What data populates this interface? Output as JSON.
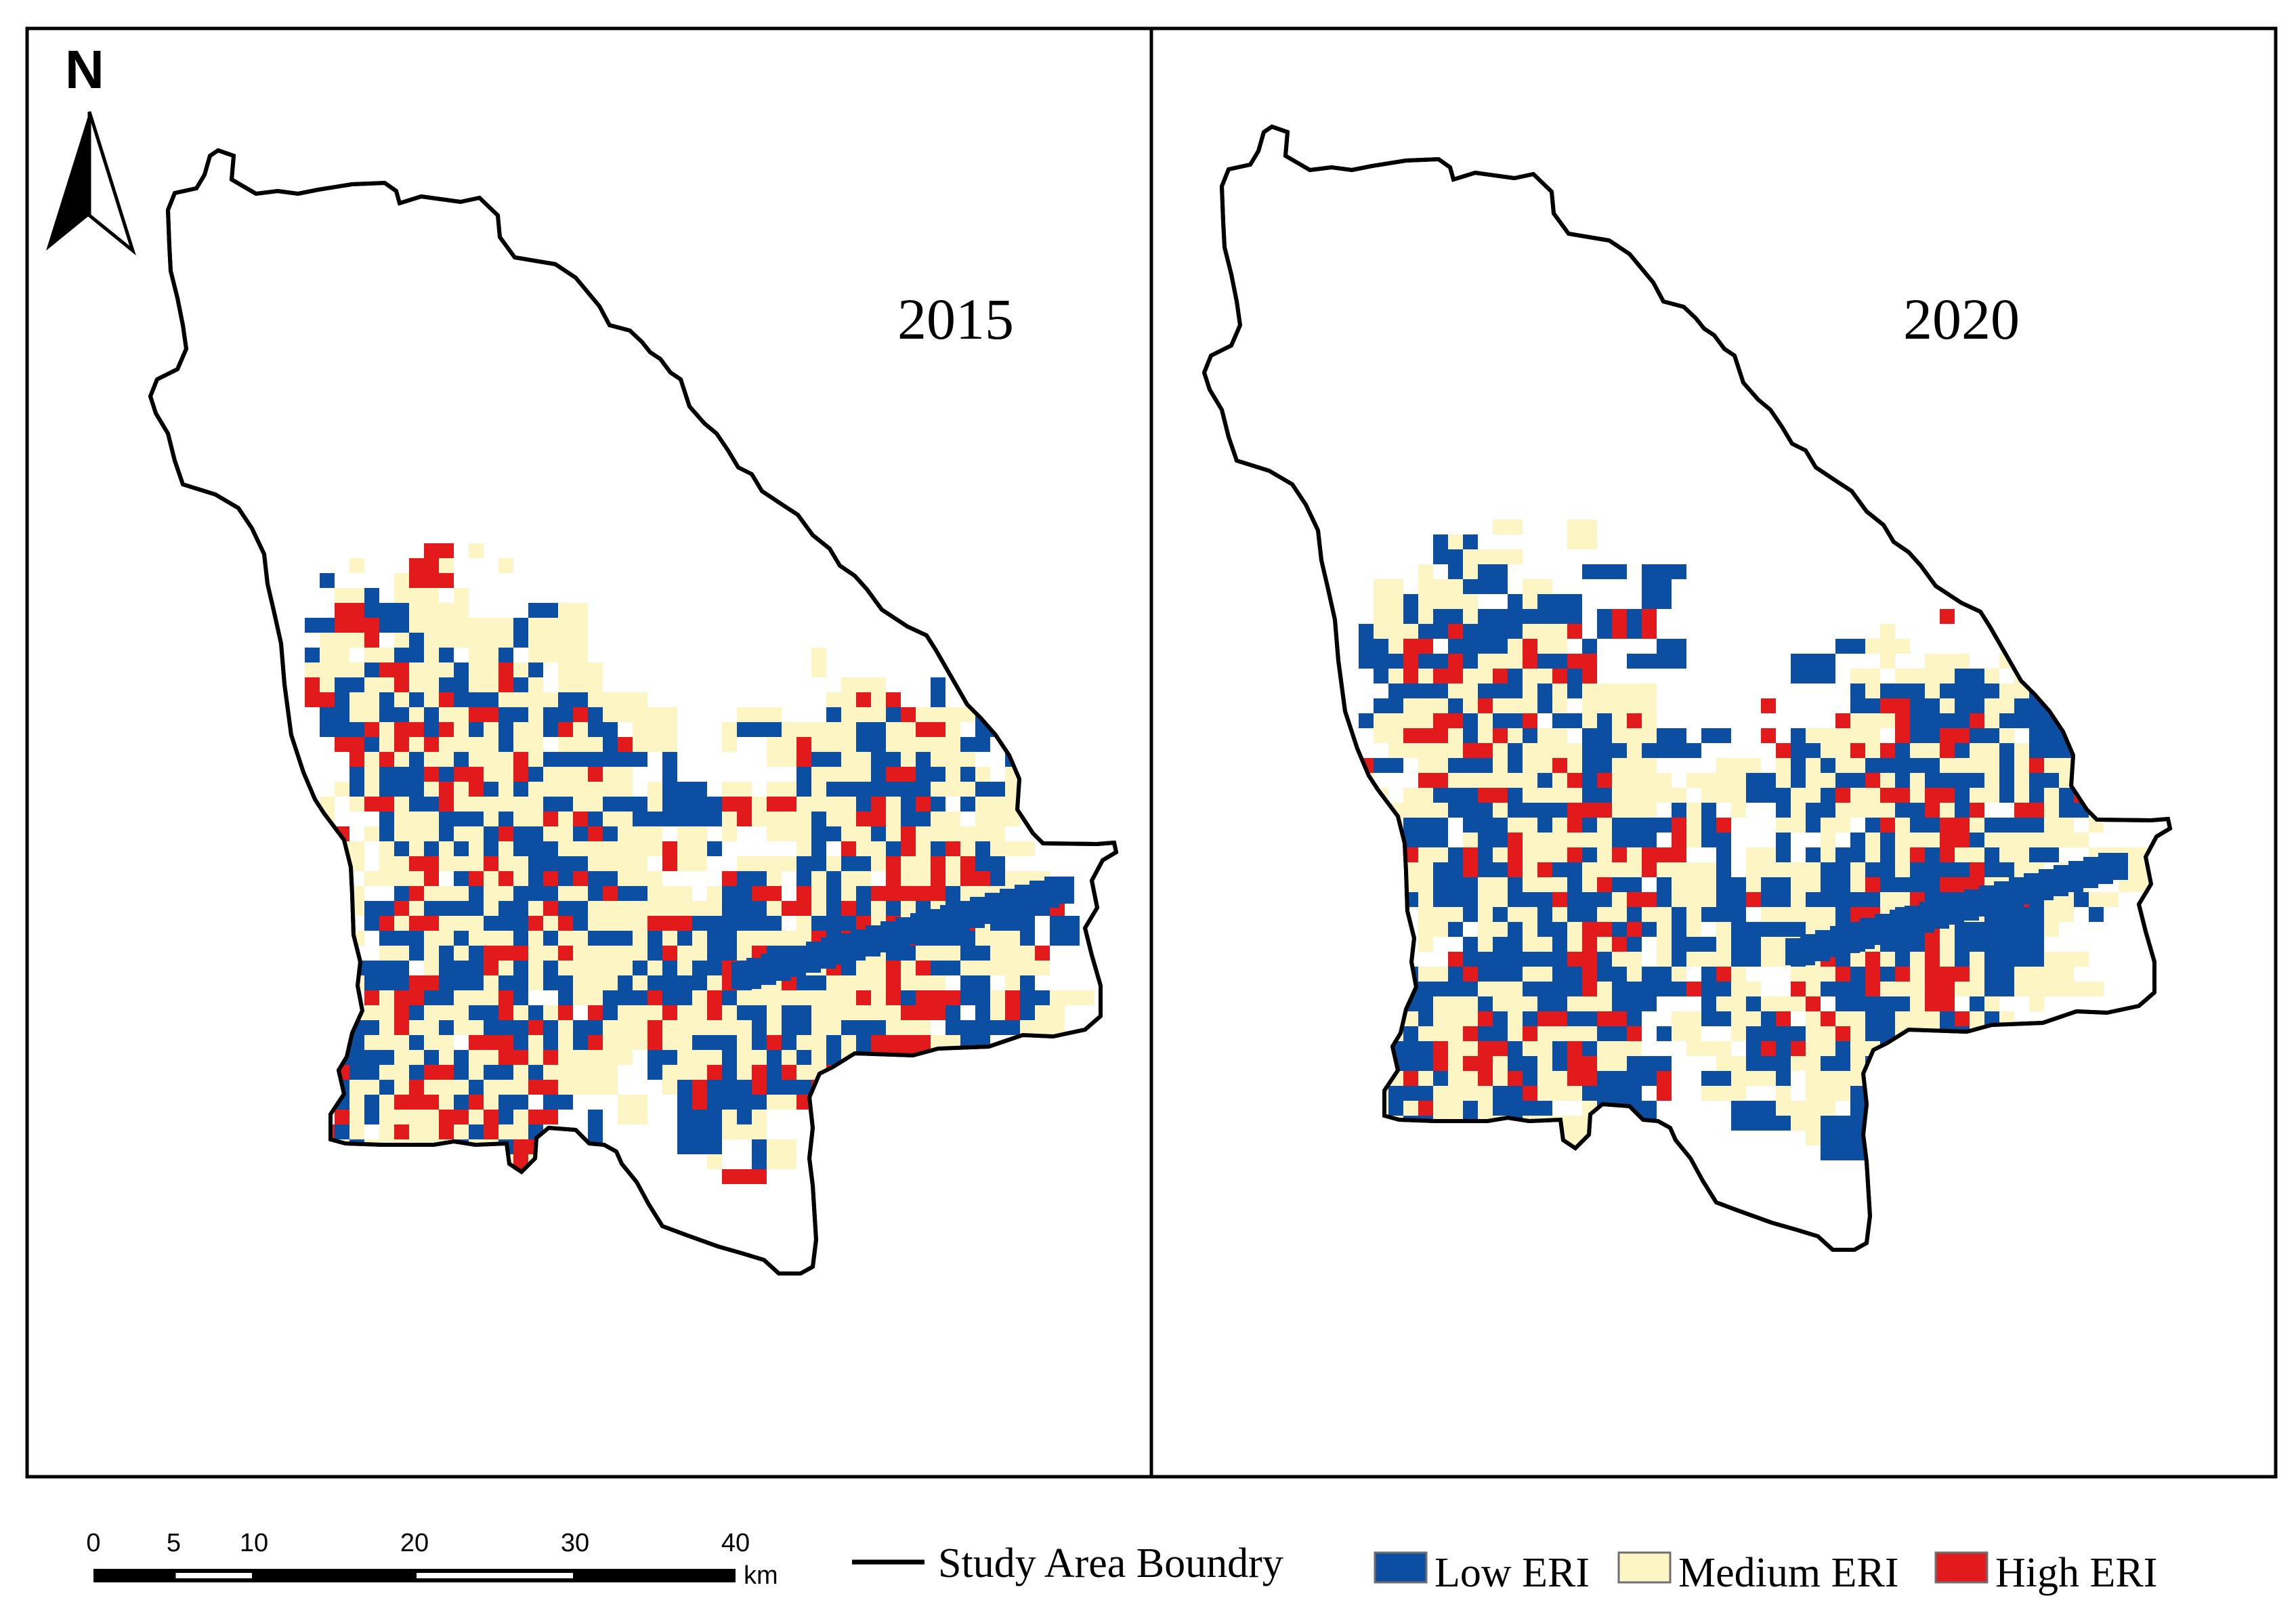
{
  "panels": [
    {
      "year": "2015"
    },
    {
      "year": "2020"
    }
  ],
  "north_arrow": {
    "label": "N"
  },
  "scale_bar": {
    "ticks": [
      "0",
      "5",
      "10",
      "20",
      "30",
      "40"
    ],
    "tick_values_km": [
      0,
      5,
      10,
      20,
      30,
      40
    ],
    "unit": "km"
  },
  "legend": {
    "boundary_label": "Study Area Boundry",
    "classes": [
      {
        "label": "Low ERI",
        "color": "#0b4ea2"
      },
      {
        "label": "Medium ERI",
        "color": "#fdf5c3"
      },
      {
        "label": "High ERI",
        "color": "#e31a1c"
      }
    ]
  }
}
